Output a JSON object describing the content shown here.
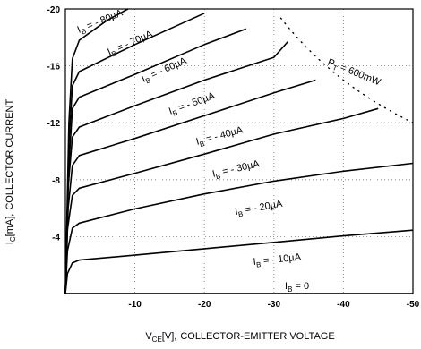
{
  "chart_data": {
    "type": "line",
    "title": "",
    "xlabel": "COLLECTOR-EMITTER VOLTAGE",
    "xlabel_symbol": "V",
    "xlabel_sub": "CE",
    "xlabel_unit": "[V],",
    "ylabel": "COLLECTOR CURRENT",
    "ylabel_symbol": "I",
    "ylabel_sub": "C",
    "ylabel_unit": "[mA],",
    "xlim": [
      0,
      -50
    ],
    "ylim": [
      0,
      -20
    ],
    "x_ticks": [
      "-10",
      "-20",
      "-30",
      "-40",
      "-50"
    ],
    "y_ticks": [
      "-4",
      "-8",
      "-12",
      "-16",
      "-20"
    ],
    "grid": "dotted",
    "series": [
      {
        "name": "I_B = -10µA",
        "label_main": "I",
        "label_sub": "B",
        "label_text": " = - 10µA",
        "points": [
          [
            0,
            0
          ],
          [
            -0.3,
            -1.4
          ],
          [
            -1,
            -2.15
          ],
          [
            -2,
            -2.35
          ],
          [
            -10,
            -2.7
          ],
          [
            -20,
            -3.15
          ],
          [
            -30,
            -3.6
          ],
          [
            -40,
            -4.05
          ],
          [
            -50,
            -4.45
          ]
        ]
      },
      {
        "name": "I_B = -20µA",
        "label_main": "I",
        "label_sub": "B",
        "label_text": " = - 20µA",
        "points": [
          [
            0,
            0
          ],
          [
            -0.3,
            -3.0
          ],
          [
            -1,
            -4.6
          ],
          [
            -2,
            -4.95
          ],
          [
            -10,
            -5.95
          ],
          [
            -20,
            -7.0
          ],
          [
            -30,
            -7.9
          ],
          [
            -40,
            -8.6
          ],
          [
            -50,
            -9.15
          ]
        ]
      },
      {
        "name": "I_B = -30µA",
        "label_main": "I",
        "label_sub": "B",
        "label_text": " = - 30µA",
        "points": [
          [
            0,
            0
          ],
          [
            -0.3,
            -4.5
          ],
          [
            -1,
            -6.9
          ],
          [
            -2,
            -7.4
          ],
          [
            -10,
            -8.45
          ],
          [
            -20,
            -9.8
          ],
          [
            -30,
            -11.2
          ],
          [
            -40,
            -12.3
          ],
          [
            -45,
            -13.0
          ]
        ]
      },
      {
        "name": "I_B = -40µA",
        "label_main": "I",
        "label_sub": "B",
        "label_text": " = - 40µA",
        "points": [
          [
            0,
            0
          ],
          [
            -0.4,
            -6.0
          ],
          [
            -1,
            -9.0
          ],
          [
            -2,
            -9.7
          ],
          [
            -10,
            -10.9
          ],
          [
            -20,
            -12.5
          ],
          [
            -30,
            -14.1
          ],
          [
            -36,
            -15.0
          ]
        ]
      },
      {
        "name": "I_B = -50µA",
        "label_main": "I",
        "label_sub": "B",
        "label_text": " = - 50µA",
        "points": [
          [
            0,
            0
          ],
          [
            -0.4,
            -7.5
          ],
          [
            -1,
            -11.0
          ],
          [
            -2,
            -11.7
          ],
          [
            -10,
            -13.2
          ],
          [
            -20,
            -15.0
          ],
          [
            -30,
            -16.6
          ],
          [
            -32,
            -17.7
          ]
        ]
      },
      {
        "name": "I_B = -60µA",
        "label_main": "I",
        "label_sub": "B",
        "label_text": " = - 60µA",
        "points": [
          [
            0,
            0
          ],
          [
            -0.5,
            -9.0
          ],
          [
            -1,
            -13.0
          ],
          [
            -2,
            -13.8
          ],
          [
            -10,
            -15.4
          ],
          [
            -20,
            -17.5
          ],
          [
            -26,
            -18.6
          ]
        ]
      },
      {
        "name": "I_B = -70µA",
        "label_main": "I",
        "label_sub": "B",
        "label_text": " = - 70µA",
        "points": [
          [
            0,
            0
          ],
          [
            -0.5,
            -10.5
          ],
          [
            -1,
            -14.6
          ],
          [
            -2,
            -15.6
          ],
          [
            -10,
            -17.5
          ],
          [
            -20,
            -19.7
          ]
        ]
      },
      {
        "name": "I_B = -80µA",
        "label_main": "I",
        "label_sub": "B",
        "label_text": " = - 80µA",
        "points": [
          [
            0,
            0
          ],
          [
            -0.5,
            -12.0
          ],
          [
            -1,
            -16.5
          ],
          [
            -2,
            -17.8
          ],
          [
            -6,
            -19.2
          ],
          [
            -9,
            -20.0
          ]
        ]
      }
    ],
    "zero_series": {
      "name": "I_B = 0",
      "label_main": "I",
      "label_sub": "B",
      "label_text": " = 0",
      "points": [
        [
          0,
          0
        ],
        [
          -50,
          0
        ]
      ]
    },
    "power_limit": {
      "label_main": "P",
      "label_sub": "T",
      "label_text": " = 600mW",
      "power_mw": 600
    }
  }
}
